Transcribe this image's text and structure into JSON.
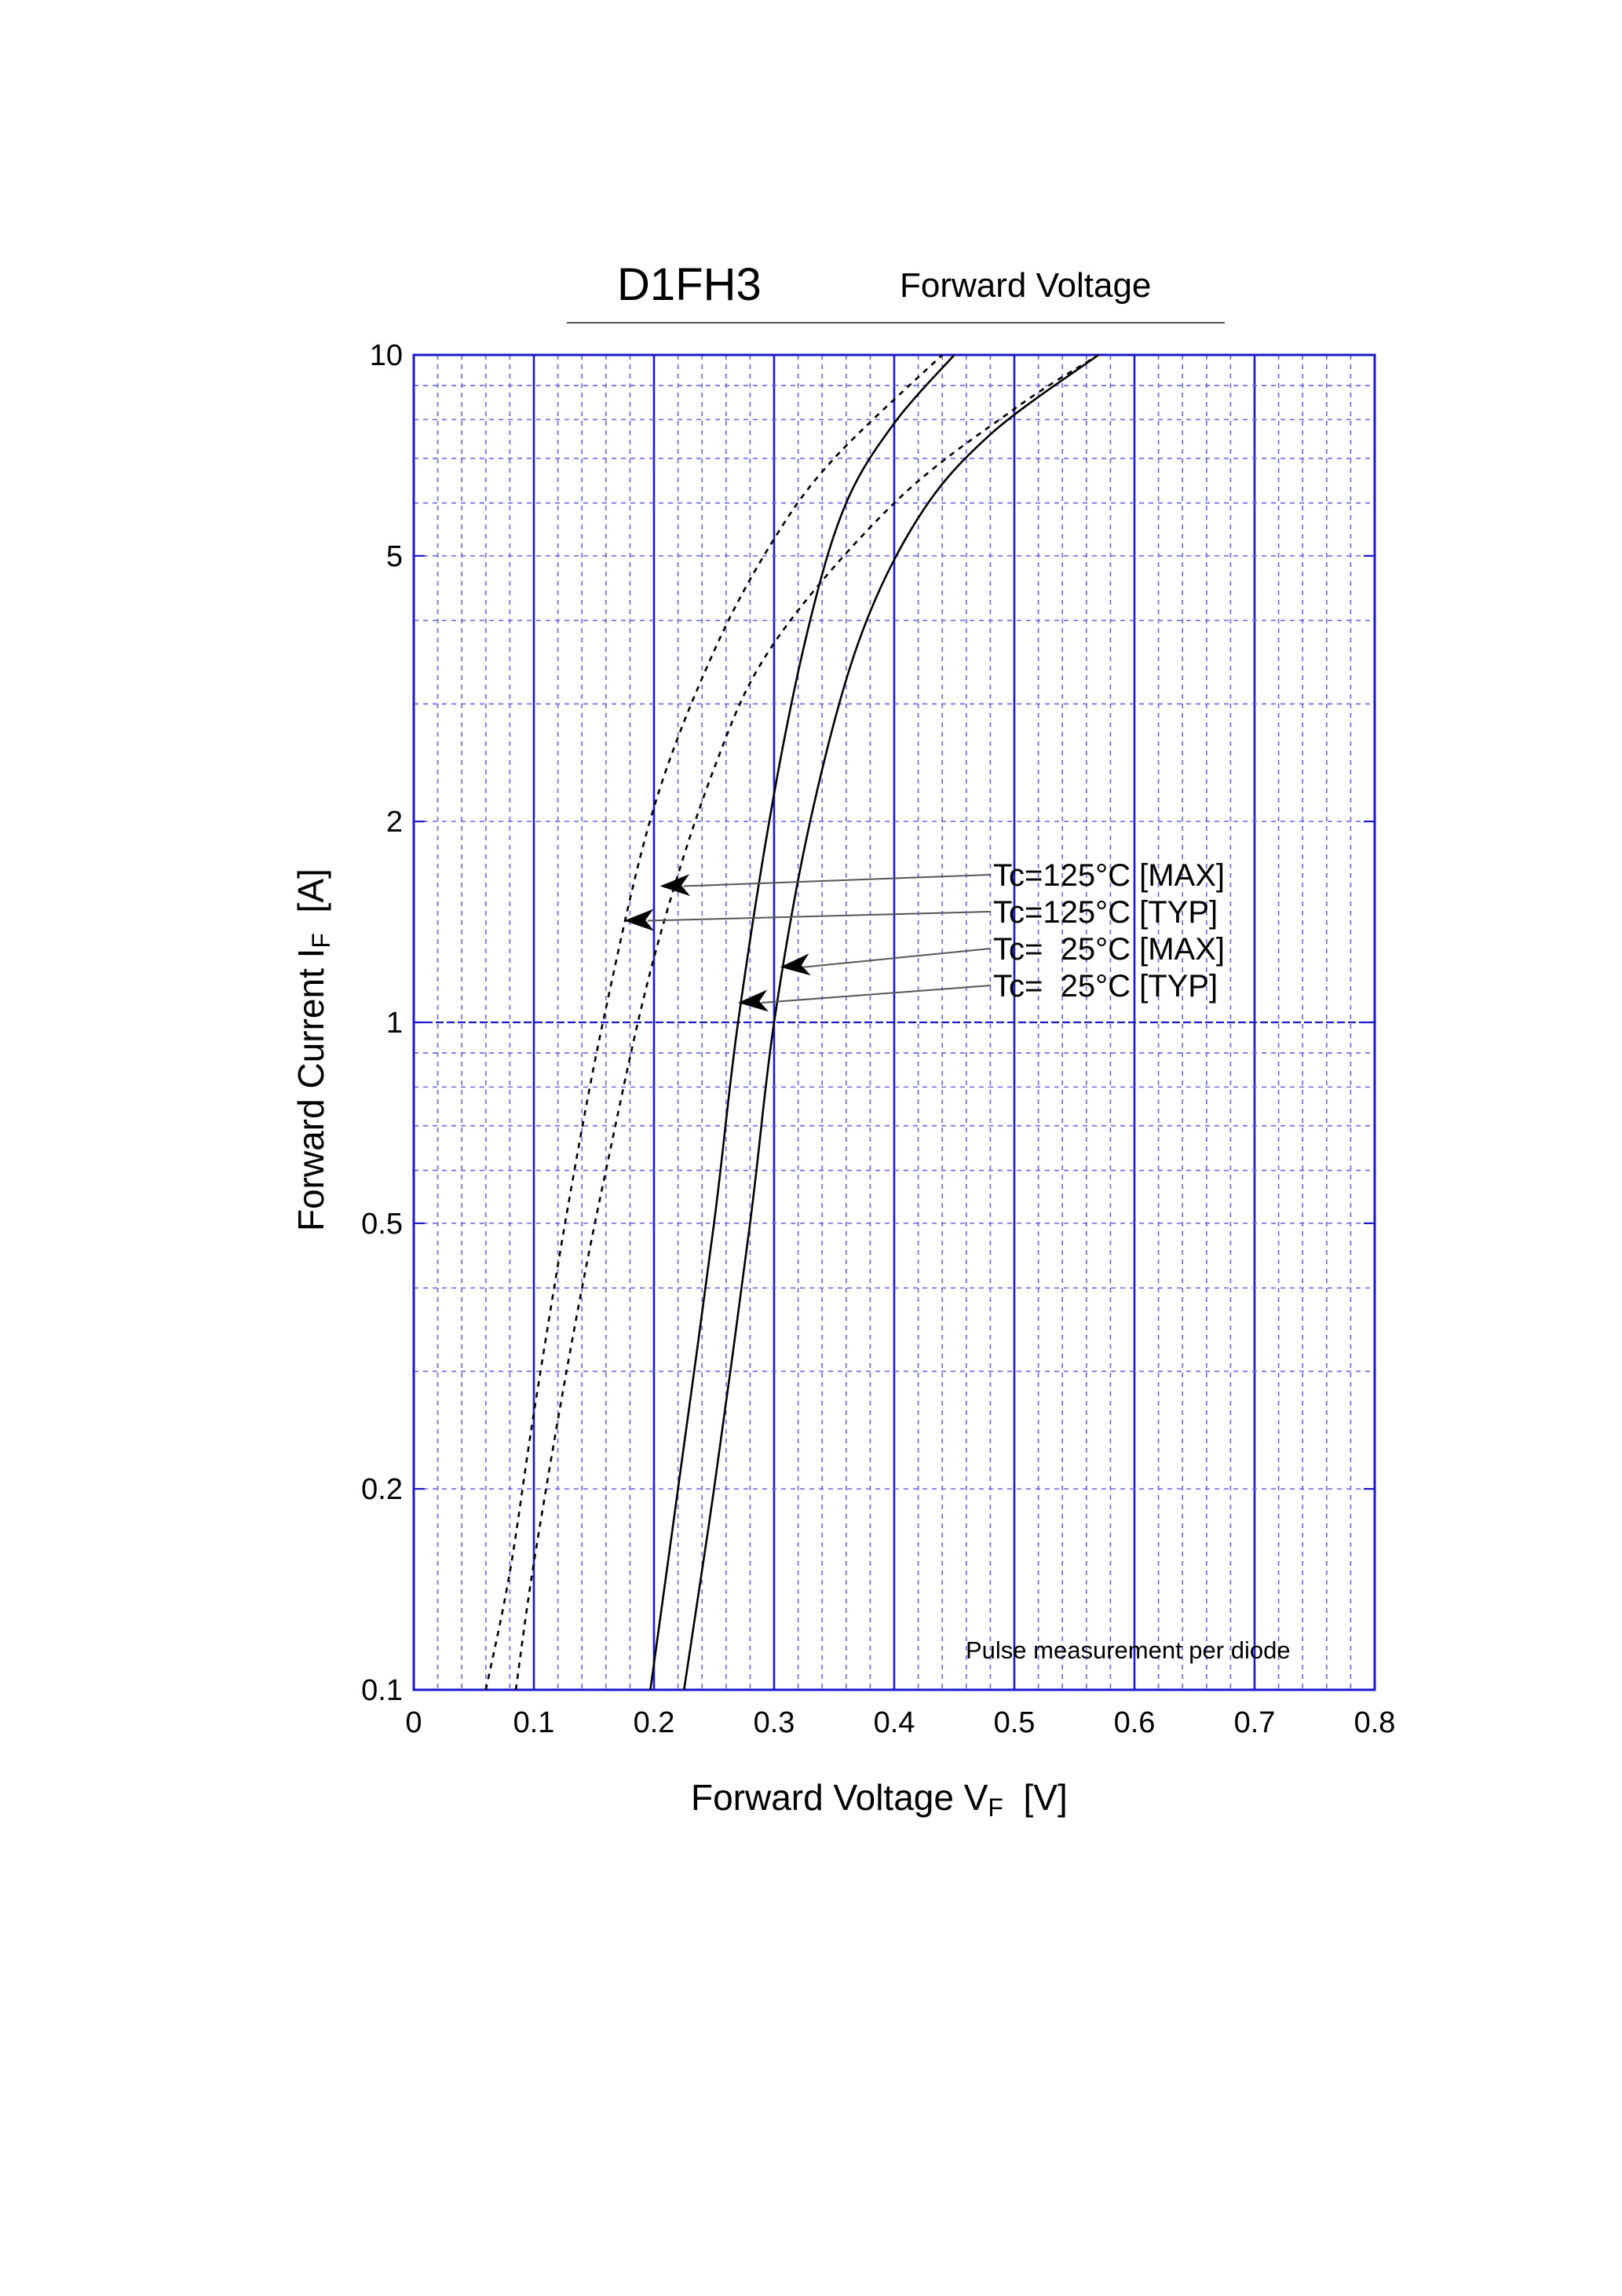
{
  "chart_data": {
    "type": "line",
    "title": "D1FH3",
    "subtitle": "Forward Voltage",
    "xlabel": {
      "main": "Forward Voltage  V",
      "sub": "F",
      "unit": "  [V]"
    },
    "ylabel": {
      "main": "Forward Current  I",
      "sub": "F",
      "unit": "  [A]"
    },
    "xlim": [
      0,
      0.8
    ],
    "ylim": [
      0.1,
      10
    ],
    "yscale": "log",
    "grid": true,
    "xticks": [
      0,
      0.1,
      0.2,
      0.3,
      0.4,
      0.5,
      0.6,
      0.7,
      0.8
    ],
    "xtick_labels": [
      "0",
      "0.1",
      "0.2",
      "0.3",
      "0.4",
      "0.5",
      "0.6",
      "0.7",
      "0.8"
    ],
    "yticks": [
      0.1,
      0.2,
      0.5,
      1,
      2,
      5,
      10
    ],
    "ytick_labels": [
      "0.1",
      "0.2",
      "0.5",
      "1",
      "2",
      "5",
      "10"
    ],
    "note": "Pulse measurement per diode",
    "series": [
      {
        "name": "Tc=125°C [MAX]",
        "style": "dashed",
        "x": [
          0.085,
          0.1,
          0.13,
          0.16,
          0.2,
          0.25,
          0.3,
          0.4,
          0.5,
          0.57
        ],
        "y": [
          0.1,
          0.155,
          0.32,
          0.6,
          1.25,
          2.4,
          3.7,
          6.0,
          8.3,
          10
        ]
      },
      {
        "name": "Tc=125°C [TYP]",
        "style": "dashed",
        "x": [
          0.06,
          0.08,
          0.1,
          0.13,
          0.16,
          0.2,
          0.25,
          0.3,
          0.35,
          0.44
        ],
        "y": [
          0.1,
          0.15,
          0.26,
          0.55,
          1.05,
          2.1,
          3.6,
          5.3,
          7.0,
          10
        ]
      },
      {
        "name": "Tc=  25°C [MAX]",
        "style": "solid",
        "x": [
          0.225,
          0.25,
          0.28,
          0.3,
          0.33,
          0.37,
          0.42,
          0.48,
          0.57
        ],
        "y": [
          0.1,
          0.2,
          0.5,
          1.0,
          2.0,
          3.7,
          5.7,
          7.6,
          10
        ]
      },
      {
        "name": "Tc=  25°C [TYP]",
        "style": "solid",
        "x": [
          0.197,
          0.22,
          0.25,
          0.27,
          0.3,
          0.33,
          0.36,
          0.4,
          0.45
        ],
        "y": [
          0.1,
          0.2,
          0.5,
          1.0,
          2.2,
          4.0,
          6.0,
          7.9,
          10
        ]
      }
    ],
    "annotations": [
      {
        "text": "Tc=125°C [MAX]",
        "arrow_to": [
          0.205,
          1.6
        ]
      },
      {
        "text": "Tc=125°C [TYP]",
        "arrow_to": [
          0.175,
          1.42
        ]
      },
      {
        "text": "Tc=  25°C [MAX]",
        "arrow_to": [
          0.305,
          1.21
        ]
      },
      {
        "text": "Tc=  25°C [TYP]",
        "arrow_to": [
          0.27,
          1.07
        ]
      }
    ],
    "colors": {
      "grid_major": "#1a1acc",
      "grid_minor": "#6666ee",
      "curve": "#000000",
      "leader": "#555555"
    }
  }
}
